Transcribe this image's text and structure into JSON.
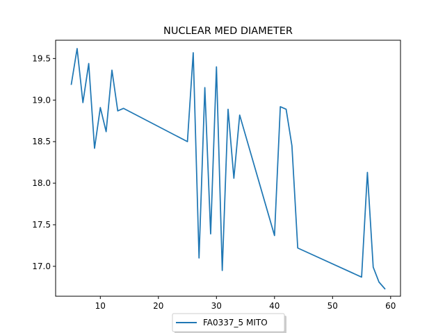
{
  "chart_data": {
    "type": "line",
    "title": "NUCLEAR MED DIAMETER",
    "xlabel": "",
    "ylabel": "",
    "xlim": [
      2.3,
      61.7
    ],
    "ylim": [
      16.64,
      19.72
    ],
    "xticks": [
      10,
      20,
      30,
      40,
      50,
      60
    ],
    "yticks": [
      17.0,
      17.5,
      18.0,
      18.5,
      19.0,
      19.5
    ],
    "xtick_labels": [
      "10",
      "20",
      "30",
      "40",
      "50",
      "60"
    ],
    "ytick_labels": [
      "17.0",
      "17.5",
      "18.0",
      "18.5",
      "19.0",
      "19.5"
    ],
    "grid": false,
    "legend_position": "bottom-center",
    "series": [
      {
        "name": "FA0337_5 MITO",
        "color": "#1f77b4",
        "x": [
          5,
          6,
          7,
          8,
          9,
          10,
          11,
          12,
          13,
          14,
          25,
          26,
          27,
          28,
          29,
          30,
          31,
          32,
          33,
          34,
          40,
          41,
          42,
          43,
          44,
          55,
          56,
          57,
          58,
          59
        ],
        "y": [
          19.19,
          19.62,
          18.97,
          19.44,
          18.42,
          18.91,
          18.62,
          19.36,
          18.87,
          18.9,
          18.5,
          19.57,
          17.1,
          19.15,
          17.39,
          19.4,
          16.95,
          18.89,
          18.06,
          18.82,
          17.37,
          18.92,
          18.89,
          18.45,
          17.22,
          16.87,
          18.13,
          16.99,
          16.81,
          16.73
        ]
      }
    ]
  }
}
